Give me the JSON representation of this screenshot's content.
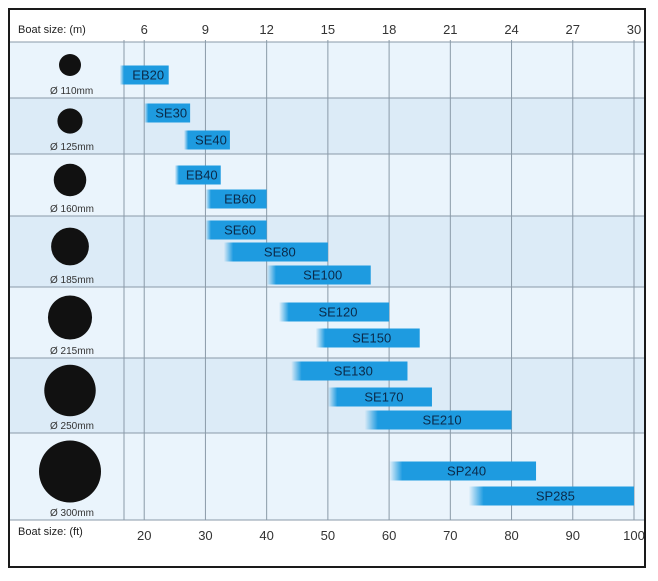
{
  "chart_data": {
    "type": "bar",
    "orientation": "horizontal-range",
    "title": "",
    "x_top_label": "Boat size: (m)",
    "x_bottom_label": "Boat size: (ft)",
    "x_m_ticks": [
      "6",
      "9",
      "12",
      "15",
      "18",
      "21",
      "24",
      "27",
      "30"
    ],
    "x_ft_ticks": [
      "20",
      "30",
      "40",
      "50",
      "60",
      "70",
      "80",
      "90",
      "100"
    ],
    "xlim_ft": [
      20,
      100
    ],
    "grid": true,
    "colors": {
      "bar": "#1e9be0",
      "band_light": "#eaf4fc",
      "band_dark": "#dcebf7",
      "circle": "#111111",
      "grid": "#8a9aa8"
    },
    "groups": [
      {
        "diameter_label": "Ø 110mm",
        "diameter_mm": 110,
        "bars": [
          {
            "name": "EB20",
            "start_ft": 16,
            "end_ft": 24
          }
        ]
      },
      {
        "diameter_label": "Ø 125mm",
        "diameter_mm": 125,
        "bars": [
          {
            "name": "SE30",
            "start_ft": 20,
            "end_ft": 27.5
          },
          {
            "name": "SE40",
            "start_ft": 26.5,
            "end_ft": 34
          }
        ]
      },
      {
        "diameter_label": "Ø 160mm",
        "diameter_mm": 160,
        "bars": [
          {
            "name": "EB40",
            "start_ft": 25,
            "end_ft": 32.5
          },
          {
            "name": "EB60",
            "start_ft": 30,
            "end_ft": 40
          }
        ]
      },
      {
        "diameter_label": "Ø 185mm",
        "diameter_mm": 185,
        "bars": [
          {
            "name": "SE60",
            "start_ft": 30,
            "end_ft": 40
          },
          {
            "name": "SE80",
            "start_ft": 33,
            "end_ft": 50
          },
          {
            "name": "SE100",
            "start_ft": 40,
            "end_ft": 57
          }
        ]
      },
      {
        "diameter_label": "Ø 215mm",
        "diameter_mm": 215,
        "bars": [
          {
            "name": "SE120",
            "start_ft": 42,
            "end_ft": 60
          },
          {
            "name": "SE150",
            "start_ft": 48,
            "end_ft": 65
          }
        ]
      },
      {
        "diameter_label": "Ø 250mm",
        "diameter_mm": 250,
        "bars": [
          {
            "name": "SE130",
            "start_ft": 44,
            "end_ft": 63
          },
          {
            "name": "SE170",
            "start_ft": 50,
            "end_ft": 67
          },
          {
            "name": "SE210",
            "start_ft": 56,
            "end_ft": 80
          }
        ]
      },
      {
        "diameter_label": "Ø 300mm",
        "diameter_mm": 300,
        "bars": [
          {
            "name": "SP240",
            "start_ft": 60,
            "end_ft": 84
          },
          {
            "name": "SP285",
            "start_ft": 73,
            "end_ft": 100
          }
        ]
      }
    ]
  }
}
